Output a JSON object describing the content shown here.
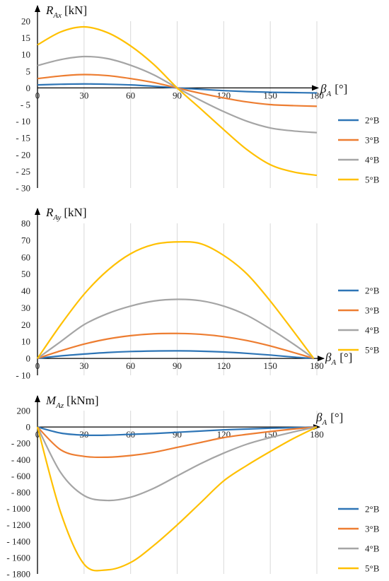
{
  "chart_data": [
    {
      "type": "line",
      "ylabel_main": "R",
      "ylabel_sub": "Ax",
      "ylabel_unit": "[kN]",
      "xlabel_main": "β",
      "xlabel_sub": "A",
      "xlabel_unit": "[°]",
      "ylim": [
        -30,
        20
      ],
      "yticks": [
        "20",
        "15",
        "10",
        "5",
        "0",
        "- 5",
        "- 10",
        "- 15",
        "- 20",
        "- 25",
        "- 30"
      ],
      "ytick_values": [
        20,
        15,
        10,
        5,
        0,
        -5,
        -10,
        -15,
        -20,
        -25,
        -30
      ],
      "xlim": [
        0,
        180
      ],
      "xticks": [
        "0",
        "30",
        "60",
        "90",
        "120",
        "150",
        "180"
      ],
      "xtick_values": [
        0,
        30,
        60,
        90,
        120,
        150,
        180
      ],
      "grid": true,
      "legend": "right",
      "series": [
        {
          "name": "2°B",
          "color": "#2e75b6",
          "x": [
            0,
            15,
            30,
            45,
            60,
            75,
            90,
            105,
            120,
            135,
            150,
            165,
            180
          ],
          "y": [
            0.9,
            1.1,
            1.2,
            1.1,
            0.9,
            0.5,
            0.0,
            -0.4,
            -0.8,
            -1.1,
            -1.3,
            -1.4,
            -1.5
          ]
        },
        {
          "name": "3°B",
          "color": "#ed7d31",
          "x": [
            0,
            15,
            30,
            45,
            60,
            75,
            90,
            105,
            120,
            135,
            150,
            165,
            180
          ],
          "y": [
            2.8,
            3.6,
            4.0,
            3.7,
            2.8,
            1.6,
            0.0,
            -1.6,
            -3.0,
            -4.2,
            -5.0,
            -5.3,
            -5.5
          ]
        },
        {
          "name": "4°B",
          "color": "#a5a5a5",
          "x": [
            0,
            15,
            30,
            45,
            60,
            75,
            90,
            105,
            120,
            135,
            150,
            165,
            180
          ],
          "y": [
            6.7,
            8.5,
            9.4,
            8.8,
            6.8,
            3.9,
            0.0,
            -3.7,
            -7.1,
            -10.0,
            -12.0,
            -12.9,
            -13.4
          ]
        },
        {
          "name": "5°B",
          "color": "#ffc000",
          "x": [
            0,
            15,
            30,
            45,
            60,
            75,
            90,
            105,
            120,
            135,
            150,
            165,
            180
          ],
          "y": [
            12.9,
            16.8,
            18.3,
            16.6,
            12.6,
            7.0,
            0.0,
            -6.2,
            -12.5,
            -18.5,
            -23.0,
            -25.2,
            -26.2
          ]
        }
      ]
    },
    {
      "type": "line",
      "ylabel_main": "R",
      "ylabel_sub": "Ay",
      "ylabel_unit": "[kN]",
      "xlabel_main": "β",
      "xlabel_sub": "A",
      "xlabel_unit": "[°]",
      "ylim": [
        -10,
        80
      ],
      "yticks": [
        "80",
        "70",
        "60",
        "50",
        "40",
        "30",
        "20",
        "10",
        "0",
        "- 10"
      ],
      "ytick_values": [
        80,
        70,
        60,
        50,
        40,
        30,
        20,
        10,
        0,
        -10
      ],
      "xlim": [
        0,
        180
      ],
      "xticks": [
        "0",
        "30",
        "60",
        "90",
        "120",
        "150",
        "180"
      ],
      "xtick_values": [
        0,
        30,
        60,
        90,
        120,
        150,
        180
      ],
      "grid": true,
      "legend": "right",
      "series": [
        {
          "name": "2°B",
          "color": "#2e75b6",
          "x": [
            0,
            15,
            30,
            45,
            60,
            75,
            90,
            105,
            120,
            135,
            150,
            165,
            178
          ],
          "y": [
            0,
            1.5,
            2.6,
            3.5,
            4.1,
            4.4,
            4.5,
            4.3,
            3.8,
            3.0,
            2.0,
            0.8,
            0
          ]
        },
        {
          "name": "3°B",
          "color": "#ed7d31",
          "x": [
            0,
            15,
            30,
            45,
            60,
            75,
            90,
            105,
            120,
            135,
            150,
            165,
            178
          ],
          "y": [
            0,
            4.5,
            8.5,
            11.5,
            13.5,
            14.6,
            14.8,
            14.3,
            12.9,
            10.6,
            7.4,
            3.5,
            0
          ]
        },
        {
          "name": "4°B",
          "color": "#a5a5a5",
          "x": [
            0,
            15,
            30,
            45,
            60,
            75,
            90,
            105,
            120,
            135,
            150,
            165,
            178
          ],
          "y": [
            0,
            10,
            20,
            26.5,
            31,
            34,
            35,
            34.2,
            31,
            25.5,
            17.5,
            8.5,
            0
          ]
        },
        {
          "name": "5°B",
          "color": "#ffc000",
          "x": [
            0,
            15,
            30,
            45,
            60,
            75,
            90,
            105,
            120,
            135,
            150,
            165,
            178
          ],
          "y": [
            0,
            20,
            38,
            52,
            62,
            67.5,
            69,
            68,
            61,
            50,
            34,
            16,
            0
          ]
        }
      ]
    },
    {
      "type": "line",
      "ylabel_main": "M",
      "ylabel_sub": "Az",
      "ylabel_unit": "[kNm]",
      "xlabel_main": "β",
      "xlabel_sub": "A",
      "xlabel_unit": "[°]",
      "ylim": [
        -1800,
        200
      ],
      "yticks": [
        "200",
        "0",
        "- 200",
        "- 400",
        "- 600",
        "- 800",
        "- 1000",
        "- 1200",
        "- 1400",
        "- 1600",
        "- 1800"
      ],
      "ytick_values": [
        200,
        0,
        -200,
        -400,
        -600,
        -800,
        -1000,
        -1200,
        -1400,
        -1600,
        -1800
      ],
      "xlim": [
        0,
        180
      ],
      "xticks": [
        "0",
        "30",
        "60",
        "90",
        "120",
        "150",
        "180"
      ],
      "xtick_values": [
        0,
        30,
        60,
        90,
        120,
        150,
        180
      ],
      "grid": true,
      "legend": "right",
      "series": [
        {
          "name": "2°B",
          "color": "#2e75b6",
          "x": [
            0,
            15,
            30,
            45,
            60,
            75,
            90,
            105,
            120,
            135,
            150,
            165,
            180
          ],
          "y": [
            0,
            -75,
            -100,
            -100,
            -90,
            -80,
            -65,
            -50,
            -35,
            -25,
            -15,
            -8,
            0
          ]
        },
        {
          "name": "3°B",
          "color": "#ed7d31",
          "x": [
            0,
            15,
            30,
            45,
            60,
            75,
            90,
            105,
            120,
            135,
            150,
            165,
            180
          ],
          "y": [
            0,
            -280,
            -360,
            -370,
            -350,
            -310,
            -250,
            -190,
            -130,
            -90,
            -55,
            -25,
            0
          ]
        },
        {
          "name": "4°B",
          "color": "#a5a5a5",
          "x": [
            0,
            15,
            30,
            45,
            60,
            75,
            90,
            105,
            120,
            135,
            150,
            165,
            180
          ],
          "y": [
            0,
            -560,
            -840,
            -900,
            -860,
            -750,
            -600,
            -450,
            -320,
            -210,
            -130,
            -60,
            0
          ]
        },
        {
          "name": "5°B",
          "color": "#ffc000",
          "x": [
            0,
            15,
            30,
            45,
            60,
            75,
            90,
            105,
            120,
            135,
            150,
            165,
            180
          ],
          "y": [
            0,
            -1050,
            -1680,
            -1750,
            -1660,
            -1450,
            -1200,
            -930,
            -660,
            -470,
            -300,
            -140,
            0
          ]
        }
      ]
    }
  ]
}
